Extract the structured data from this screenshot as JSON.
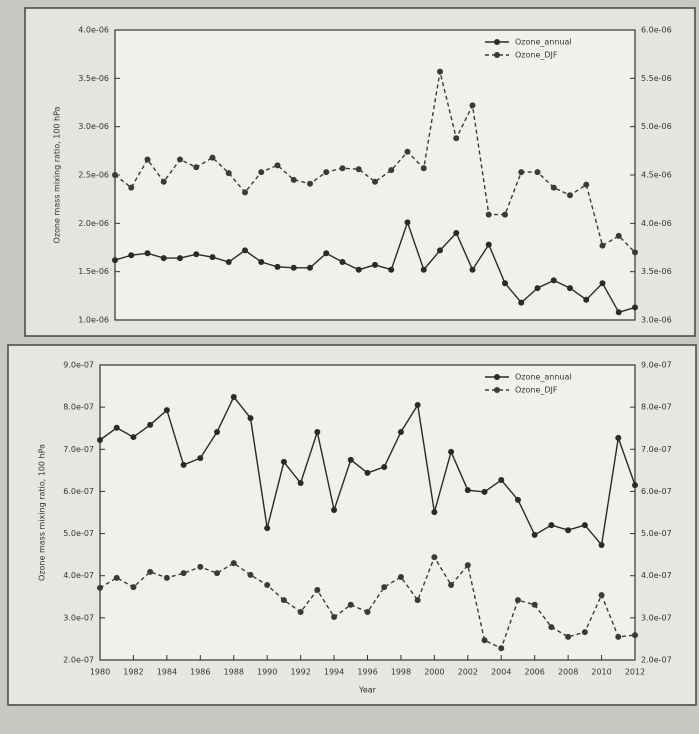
{
  "chart_data": [
    {
      "type": "line",
      "y_label": "Ozone mass mixing ratio, 100 hPa",
      "x": [
        1980,
        1981,
        1982,
        1983,
        1984,
        1985,
        1986,
        1987,
        1988,
        1989,
        1990,
        1991,
        1992,
        1993,
        1994,
        1995,
        1996,
        1997,
        1998,
        1999,
        2000,
        2001,
        2002,
        2003,
        2004,
        2005,
        2006,
        2007,
        2008,
        2009,
        2010,
        2011,
        2012
      ],
      "xlim": [
        1980,
        2012
      ],
      "ylim": [
        1e-06,
        4e-06
      ],
      "yticks": [
        {
          "value": 1e-06,
          "label": "1.0e-06"
        },
        {
          "value": 1.5e-06,
          "label": "1.5e-06"
        },
        {
          "value": 2e-06,
          "label": "2.0e-06"
        },
        {
          "value": 2.5e-06,
          "label": "2.5e-06"
        },
        {
          "value": 3e-06,
          "label": "3.0e-06"
        },
        {
          "value": 3.5e-06,
          "label": "3.5e-06"
        },
        {
          "value": 4e-06,
          "label": "4.0e-06"
        }
      ],
      "y2lim": [
        3e-06,
        6e-06
      ],
      "y2ticks": [
        {
          "value": 3e-06,
          "label": "3.0e-06"
        },
        {
          "value": 3.5e-06,
          "label": "3.5e-06"
        },
        {
          "value": 4e-06,
          "label": "4.0e-06"
        },
        {
          "value": 4.5e-06,
          "label": "4.5e-06"
        },
        {
          "value": 5e-06,
          "label": "5.0e-06"
        },
        {
          "value": 5.5e-06,
          "label": "5.5e-06"
        },
        {
          "value": 6e-06,
          "label": "6.0e-06"
        }
      ],
      "legend": "upper right",
      "series": [
        {
          "name": "Ozone_annual",
          "color": "#2a2a2a",
          "line_style": "solid",
          "values": [
            1.62e-06,
            1.67e-06,
            1.69e-06,
            1.64e-06,
            1.64e-06,
            1.68e-06,
            1.65e-06,
            1.6e-06,
            1.72e-06,
            1.6e-06,
            1.55e-06,
            1.54e-06,
            1.54e-06,
            1.69e-06,
            1.6e-06,
            1.52e-06,
            1.57e-06,
            1.52e-06,
            2.01e-06,
            1.52e-06,
            1.72e-06,
            1.9e-06,
            1.52e-06,
            1.78e-06,
            1.38e-06,
            1.18e-06,
            1.33e-06,
            1.41e-06,
            1.33e-06,
            1.21e-06,
            1.38e-06,
            1.08e-06,
            1.13e-06
          ]
        },
        {
          "name": "Ozone_DJF",
          "color": "#3a3a3a",
          "line_style": "dashed",
          "axis": "y2",
          "values": [
            4.5e-06,
            4.37e-06,
            4.66e-06,
            4.43e-06,
            4.66e-06,
            4.58e-06,
            4.68e-06,
            4.52e-06,
            4.32e-06,
            4.53e-06,
            4.6e-06,
            4.45e-06,
            4.41e-06,
            4.53e-06,
            4.57e-06,
            4.56e-06,
            4.43e-06,
            4.55e-06,
            4.74e-06,
            4.57e-06,
            5.57e-06,
            4.88e-06,
            5.22e-06,
            4.09e-06,
            4.09e-06,
            4.53e-06,
            4.53e-06,
            4.37e-06,
            4.29e-06,
            4.4e-06,
            3.77e-06,
            3.87e-06,
            3.7e-06
          ]
        }
      ]
    },
    {
      "type": "line",
      "y_label": "Ozone mass mixing ratio, 100 hPa",
      "x_label": "Year",
      "x": [
        1980,
        1981,
        1982,
        1983,
        1984,
        1985,
        1986,
        1987,
        1988,
        1989,
        1990,
        1991,
        1992,
        1993,
        1994,
        1995,
        1996,
        1997,
        1998,
        1999,
        2000,
        2001,
        2002,
        2003,
        2004,
        2005,
        2006,
        2007,
        2008,
        2009,
        2010,
        2011,
        2012
      ],
      "xlim": [
        1980,
        2012
      ],
      "xticks": [
        1980,
        1982,
        1984,
        1986,
        1988,
        1990,
        1992,
        1994,
        1996,
        1998,
        2000,
        2002,
        2004,
        2006,
        2008,
        2010,
        2012
      ],
      "ylim": [
        2e-07,
        9e-07
      ],
      "yticks": [
        {
          "value": 2e-07,
          "label": "2.0e-07"
        },
        {
          "value": 3e-07,
          "label": "3.0e-07"
        },
        {
          "value": 4e-07,
          "label": "4.0e-07"
        },
        {
          "value": 5e-07,
          "label": "5.0e-07"
        },
        {
          "value": 6e-07,
          "label": "6.0e-07"
        },
        {
          "value": 7e-07,
          "label": "7.0e-07"
        },
        {
          "value": 8e-07,
          "label": "8.0e-07"
        },
        {
          "value": 9e-07,
          "label": "9.0e-07"
        }
      ],
      "y2lim": [
        2e-07,
        9e-07
      ],
      "y2ticks": [
        {
          "value": 2e-07,
          "label": "2.0e-07"
        },
        {
          "value": 3e-07,
          "label": "3.0e-07"
        },
        {
          "value": 4e-07,
          "label": "4.0e-07"
        },
        {
          "value": 5e-07,
          "label": "5.0e-07"
        },
        {
          "value": 6e-07,
          "label": "6.0e-07"
        },
        {
          "value": 7e-07,
          "label": "7.0e-07"
        },
        {
          "value": 8e-07,
          "label": "8.0e-07"
        },
        {
          "value": 9e-07,
          "label": "9.0e-07"
        }
      ],
      "legend": "upper right",
      "series": [
        {
          "name": "Ozone_annual",
          "color": "#2a2a2a",
          "line_style": "solid",
          "values": [
            7.22e-07,
            7.51e-07,
            7.29e-07,
            7.58e-07,
            7.93e-07,
            6.63e-07,
            6.79e-07,
            7.41e-07,
            8.24e-07,
            7.74e-07,
            5.13e-07,
            6.7e-07,
            6.2e-07,
            7.41e-07,
            5.56e-07,
            6.75e-07,
            6.44e-07,
            6.58e-07,
            7.41e-07,
            8.05e-07,
            5.51e-07,
            6.94e-07,
            6.03e-07,
            5.99e-07,
            6.27e-07,
            5.8e-07,
            4.97e-07,
            5.2e-07,
            5.08e-07,
            5.2e-07,
            4.73e-07,
            7.27e-07,
            6.15e-07
          ]
        },
        {
          "name": "Ozone_DJF",
          "color": "#3a3a3a",
          "line_style": "dashed",
          "axis": "y2",
          "values": [
            3.71e-07,
            3.95e-07,
            3.73e-07,
            4.09e-07,
            3.95e-07,
            4.06e-07,
            4.21e-07,
            4.06e-07,
            4.3e-07,
            4.02e-07,
            3.78e-07,
            3.42e-07,
            3.14e-07,
            3.66e-07,
            3.02e-07,
            3.31e-07,
            3.14e-07,
            3.73e-07,
            3.97e-07,
            3.42e-07,
            4.44e-07,
            3.78e-07,
            4.25e-07,
            2.47e-07,
            2.28e-07,
            3.42e-07,
            3.31e-07,
            2.78e-07,
            2.55e-07,
            2.66e-07,
            3.54e-07,
            2.55e-07,
            2.59e-07
          ]
        }
      ]
    }
  ]
}
